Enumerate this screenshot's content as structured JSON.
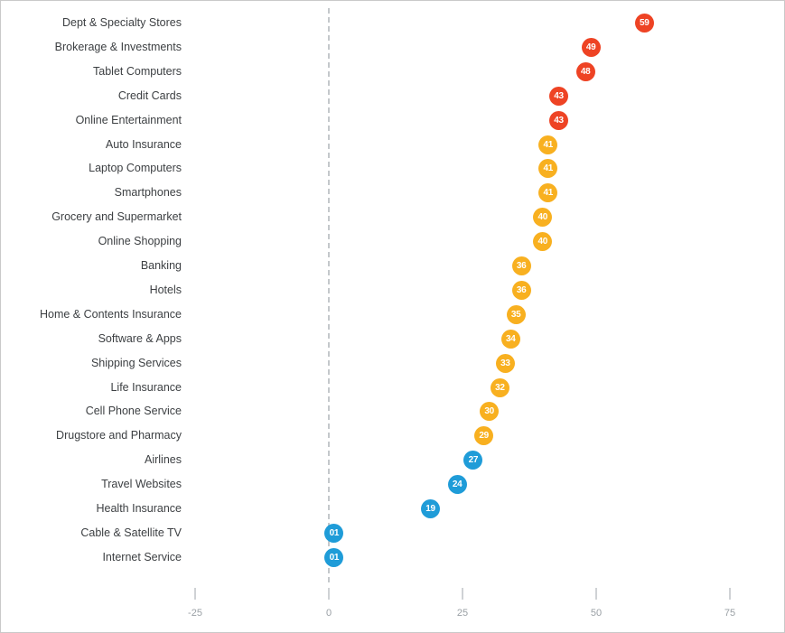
{
  "colors": {
    "red": "#ee4324",
    "amber": "#f8b020",
    "blue": "#1f9cd8",
    "category_text": "#3d4043",
    "axis_text": "#9aa0a5",
    "tick_mark": "#cfd2d5",
    "zero_line": "#c4c8cb",
    "border": "#c9c9c9",
    "background": "#ffffff"
  },
  "chart_data": {
    "type": "scatter",
    "subtype": "horizontal-dot-plot",
    "title": "",
    "xlabel": "",
    "ylabel": "",
    "x_ticks": [
      -25,
      0,
      25,
      50,
      75
    ],
    "x_tick_labels": [
      "-25",
      "0",
      "25",
      "50",
      "75"
    ],
    "xlim": [
      -37,
      85
    ],
    "zero_reference_line": 0,
    "grid": false,
    "legend": false,
    "points": [
      {
        "category": "Dept & Specialty Stores",
        "value": 59,
        "display": "59",
        "color": "red"
      },
      {
        "category": "Brokerage & Investments",
        "value": 49,
        "display": "49",
        "color": "red"
      },
      {
        "category": "Tablet Computers",
        "value": 48,
        "display": "48",
        "color": "red"
      },
      {
        "category": "Credit Cards",
        "value": 43,
        "display": "43",
        "color": "red"
      },
      {
        "category": "Online Entertainment",
        "value": 43,
        "display": "43",
        "color": "red"
      },
      {
        "category": "Auto Insurance",
        "value": 41,
        "display": "41",
        "color": "amber"
      },
      {
        "category": "Laptop Computers",
        "value": 41,
        "display": "41",
        "color": "amber"
      },
      {
        "category": "Smartphones",
        "value": 41,
        "display": "41",
        "color": "amber"
      },
      {
        "category": "Grocery and Supermarket",
        "value": 40,
        "display": "40",
        "color": "amber"
      },
      {
        "category": "Online Shopping",
        "value": 40,
        "display": "40",
        "color": "amber"
      },
      {
        "category": "Banking",
        "value": 36,
        "display": "36",
        "color": "amber"
      },
      {
        "category": "Hotels",
        "value": 36,
        "display": "36",
        "color": "amber"
      },
      {
        "category": "Home & Contents Insurance",
        "value": 35,
        "display": "35",
        "color": "amber"
      },
      {
        "category": "Software & Apps",
        "value": 34,
        "display": "34",
        "color": "amber"
      },
      {
        "category": "Shipping Services",
        "value": 33,
        "display": "33",
        "color": "amber"
      },
      {
        "category": "Life Insurance",
        "value": 32,
        "display": "32",
        "color": "amber"
      },
      {
        "category": "Cell Phone Service",
        "value": 30,
        "display": "30",
        "color": "amber"
      },
      {
        "category": "Drugstore and Pharmacy",
        "value": 29,
        "display": "29",
        "color": "amber"
      },
      {
        "category": "Airlines",
        "value": 27,
        "display": "27",
        "color": "blue"
      },
      {
        "category": "Travel Websites",
        "value": 24,
        "display": "24",
        "color": "blue"
      },
      {
        "category": "Health Insurance",
        "value": 19,
        "display": "19",
        "color": "blue"
      },
      {
        "category": "Cable & Satellite TV",
        "value": 1,
        "display": "01",
        "color": "blue"
      },
      {
        "category": "Internet Service",
        "value": 1,
        "display": "01",
        "color": "blue"
      }
    ]
  }
}
